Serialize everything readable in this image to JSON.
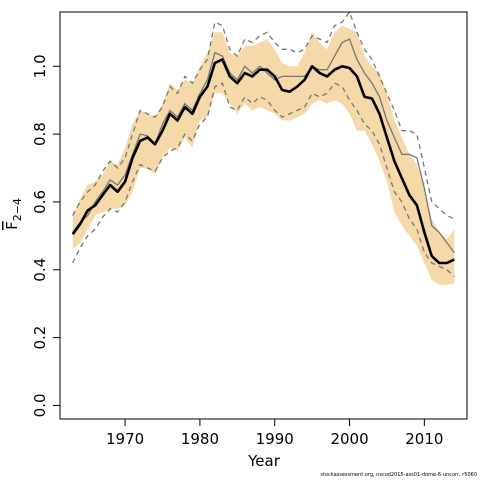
{
  "chart_data": {
    "type": "line",
    "xlabel": "Year",
    "ylabel_main": "F",
    "ylabel_sub": "2−4",
    "xlim": [
      1961.3,
      2015.7
    ],
    "ylim": [
      -0.04,
      1.16
    ],
    "xticks": [
      1970,
      1980,
      1990,
      2000,
      2010
    ],
    "yticks": [
      0.0,
      0.2,
      0.4,
      0.6,
      0.8,
      1.0
    ],
    "ytick_labels": [
      "0.0",
      "0.2",
      "0.4",
      "0.6",
      "0.8",
      "1.0"
    ],
    "x": [
      1963,
      1964,
      1965,
      1966,
      1967,
      1968,
      1969,
      1970,
      1971,
      1972,
      1973,
      1974,
      1975,
      1976,
      1977,
      1978,
      1979,
      1980,
      1981,
      1982,
      1983,
      1984,
      1985,
      1986,
      1987,
      1988,
      1989,
      1990,
      1991,
      1992,
      1993,
      1994,
      1995,
      1996,
      1997,
      1998,
      1999,
      2000,
      2001,
      2002,
      2003,
      2004,
      2005,
      2006,
      2007,
      2008,
      2009,
      2010,
      2011,
      2012,
      2013,
      2014
    ],
    "series": [
      {
        "role": "estimate",
        "color": "#000000",
        "values": [
          0.505,
          0.535,
          0.575,
          0.59,
          0.62,
          0.65,
          0.63,
          0.66,
          0.73,
          0.78,
          0.79,
          0.77,
          0.81,
          0.86,
          0.84,
          0.88,
          0.86,
          0.91,
          0.94,
          1.01,
          1.02,
          0.97,
          0.95,
          0.98,
          0.97,
          0.99,
          0.99,
          0.97,
          0.93,
          0.925,
          0.94,
          0.96,
          1.0,
          0.98,
          0.97,
          0.99,
          1.0,
          0.995,
          0.97,
          0.91,
          0.905,
          0.86,
          0.79,
          0.72,
          0.67,
          0.62,
          0.59,
          0.51,
          0.44,
          0.42,
          0.42,
          0.43
        ]
      },
      {
        "role": "ci-lower",
        "color": "#777777",
        "values": [
          0.42,
          0.465,
          0.5,
          0.52,
          0.555,
          0.58,
          0.57,
          0.6,
          0.66,
          0.71,
          0.7,
          0.69,
          0.73,
          0.75,
          0.76,
          0.8,
          0.78,
          0.83,
          0.85,
          0.94,
          0.95,
          0.88,
          0.87,
          0.91,
          0.89,
          0.91,
          0.9,
          0.87,
          0.85,
          0.86,
          0.87,
          0.88,
          0.92,
          0.91,
          0.92,
          0.95,
          0.94,
          0.9,
          0.87,
          0.83,
          0.81,
          0.77,
          0.7,
          0.63,
          0.6,
          0.55,
          0.52,
          0.45,
          0.42,
          0.41,
          0.4,
          0.38
        ]
      },
      {
        "role": "ci-upper",
        "color": "#777777",
        "values": [
          0.56,
          0.6,
          0.63,
          0.65,
          0.69,
          0.72,
          0.7,
          0.73,
          0.8,
          0.87,
          0.86,
          0.85,
          0.88,
          0.94,
          0.92,
          0.97,
          0.95,
          0.99,
          1.02,
          1.13,
          1.12,
          1.05,
          1.03,
          1.08,
          1.07,
          1.09,
          1.1,
          1.07,
          1.05,
          1.05,
          1.04,
          1.05,
          1.09,
          1.08,
          1.07,
          1.12,
          1.13,
          1.16,
          1.1,
          1.05,
          1.02,
          0.97,
          0.92,
          0.87,
          0.81,
          0.81,
          0.8,
          0.7,
          0.6,
          0.58,
          0.56,
          0.55
        ]
      },
      {
        "role": "alt-estimate",
        "color": "#777777",
        "values": [
          0.51,
          0.54,
          0.56,
          0.6,
          0.63,
          0.665,
          0.65,
          0.68,
          0.74,
          0.8,
          0.795,
          0.77,
          0.83,
          0.87,
          0.85,
          0.89,
          0.87,
          0.92,
          0.96,
          1.04,
          1.03,
          0.98,
          0.96,
          1.0,
          0.98,
          1.0,
          0.98,
          0.96,
          0.97,
          0.97,
          0.97,
          0.97,
          1.0,
          0.99,
          0.99,
          1.03,
          1.07,
          1.08,
          1.02,
          0.98,
          0.95,
          0.91,
          0.84,
          0.79,
          0.74,
          0.74,
          0.73,
          0.64,
          0.53,
          0.51,
          0.48,
          0.45
        ]
      },
      {
        "role": "band-lower",
        "values": [
          0.46,
          0.48,
          0.52,
          0.56,
          0.57,
          0.58,
          0.58,
          0.59,
          0.63,
          0.7,
          0.7,
          0.68,
          0.73,
          0.76,
          0.75,
          0.79,
          0.76,
          0.84,
          0.85,
          0.92,
          0.92,
          0.89,
          0.86,
          0.89,
          0.87,
          0.88,
          0.87,
          0.86,
          0.84,
          0.84,
          0.85,
          0.86,
          0.89,
          0.9,
          0.89,
          0.9,
          0.89,
          0.86,
          0.81,
          0.81,
          0.77,
          0.72,
          0.66,
          0.57,
          0.53,
          0.5,
          0.47,
          0.42,
          0.37,
          0.355,
          0.355,
          0.36
        ]
      },
      {
        "role": "band-upper",
        "values": [
          0.56,
          0.61,
          0.65,
          0.66,
          0.68,
          0.72,
          0.71,
          0.76,
          0.83,
          0.87,
          0.86,
          0.85,
          0.89,
          0.95,
          0.93,
          0.96,
          0.95,
          1.0,
          1.04,
          1.1,
          1.1,
          1.04,
          1.03,
          1.06,
          1.06,
          1.07,
          1.08,
          1.05,
          1.01,
          1.0,
          1.0,
          1.04,
          1.1,
          1.07,
          1.05,
          1.1,
          1.12,
          1.11,
          1.1,
          1.03,
          1.0,
          0.98,
          0.92,
          0.84,
          0.79,
          0.74,
          0.71,
          0.64,
          0.55,
          0.51,
          0.49,
          0.52
        ]
      }
    ],
    "colors": {
      "band": "#f5d9a8",
      "estimate": "#000000",
      "bounds": "#777777",
      "frame": "#000000"
    },
    "grid": false
  },
  "credit_text": "stockassessment.org, nscod2015-ass01-dome-6-uncorr, r5060"
}
